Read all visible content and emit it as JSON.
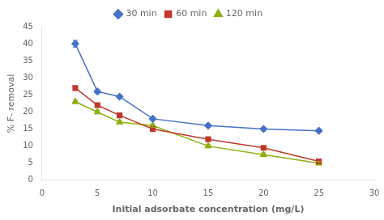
{
  "chart_data": {
    "type": "line",
    "x": [
      3,
      5,
      7,
      10,
      15,
      20,
      25
    ],
    "series": [
      {
        "name": "30 min",
        "color": "#4472C4",
        "marker": "diamond",
        "values": [
          40.0,
          26.0,
          24.5,
          18.0,
          16.0,
          15.0,
          14.5
        ],
        "yerr": [
          1.0,
          0.5,
          0.5,
          0.5,
          0.5,
          0.5,
          0.5
        ]
      },
      {
        "name": "60 min",
        "color": "#C0392B",
        "marker": "square",
        "values": [
          27.0,
          22.0,
          19.0,
          15.0,
          12.0,
          9.5,
          5.5
        ],
        "yerr": [
          0.5,
          0.5,
          0.5,
          0.5,
          0.5,
          0.5,
          0.5
        ]
      },
      {
        "name": "120 min",
        "color": "#8DB010",
        "marker": "triangle",
        "values": [
          23.0,
          20.0,
          17.0,
          16.0,
          10.0,
          7.5,
          5.0
        ],
        "yerr": [
          0.5,
          0.5,
          0.5,
          0.5,
          0.5,
          0.5,
          0.5
        ]
      }
    ],
    "xlabel": "Initial adsorbate concentration (mg/L)",
    "ylabel": "% F- removal",
    "xlim": [
      0,
      30
    ],
    "ylim": [
      0,
      45
    ],
    "xticks": [
      0,
      5,
      10,
      15,
      20,
      25,
      30
    ],
    "yticks": [
      0,
      5,
      10,
      15,
      20,
      25,
      30,
      35,
      40,
      45
    ],
    "grid": false,
    "legend": "top"
  }
}
